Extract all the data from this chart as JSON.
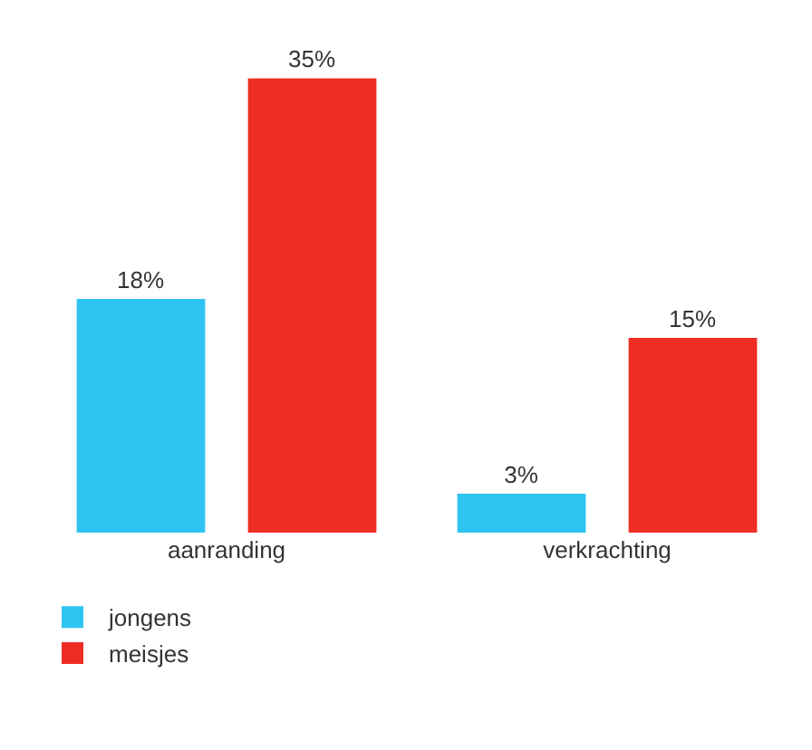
{
  "chart_data": {
    "type": "bar",
    "categories": [
      "aanranding",
      "verkrachting"
    ],
    "series": [
      {
        "name": "jongens",
        "color": "#2ec4f2",
        "values": [
          18,
          3
        ],
        "value_labels": [
          "18%",
          "3%"
        ]
      },
      {
        "name": "meisjes",
        "color": "#ee2e24",
        "values": [
          35,
          15
        ],
        "value_labels": [
          "35%",
          "15%"
        ]
      }
    ],
    "legend": "bottom left"
  }
}
